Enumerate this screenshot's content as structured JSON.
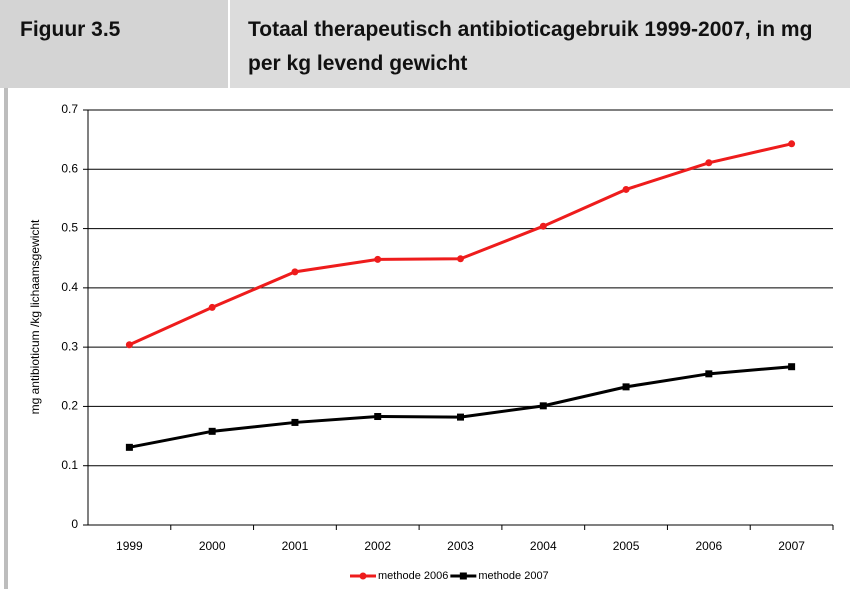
{
  "chart_data": {
    "type": "line",
    "label": "Figuur 3.5",
    "title": "Totaal therapeutisch antibioticagebruik 1999-2007, in mg per kg levend gewicht",
    "y_label": "mg antibioticum /kg lichaamsgewicht",
    "categories": [
      "1999",
      "2000",
      "2001",
      "2002",
      "2003",
      "2004",
      "2005",
      "2006",
      "2007"
    ],
    "series": [
      {
        "name": "methode 2006",
        "color": "#ee1c1c",
        "marker": "circle",
        "values": [
          0.304,
          0.367,
          0.427,
          0.448,
          0.449,
          0.504,
          0.566,
          0.611,
          0.643
        ]
      },
      {
        "name": "methode 2007",
        "color": "#000000",
        "marker": "square",
        "values": [
          0.131,
          0.158,
          0.173,
          0.183,
          0.182,
          0.201,
          0.233,
          0.255,
          0.267
        ]
      }
    ],
    "ylim": [
      0,
      0.7
    ],
    "yticks": [
      0,
      0.1,
      0.2,
      0.3,
      0.4,
      0.5,
      0.6,
      0.7
    ],
    "grid": true,
    "legend": "bottom"
  }
}
